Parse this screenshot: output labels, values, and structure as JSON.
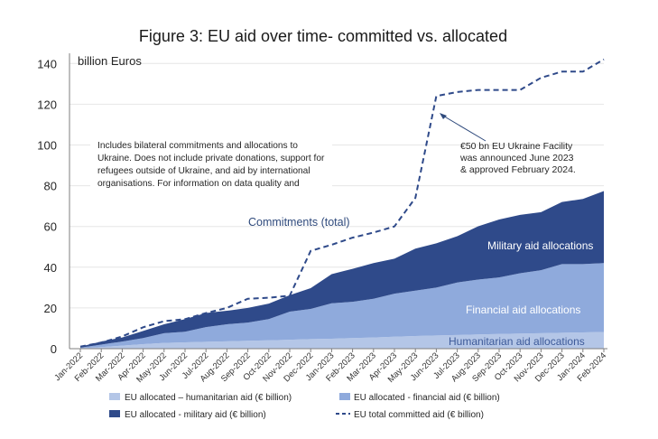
{
  "colors": {
    "humanitarian": "#b4c6e7",
    "financial": "#8faadc",
    "military": "#2f4a8a",
    "committed": "#2f4a8a",
    "grid": "#e6e6e6"
  },
  "chart_data": {
    "type": "area",
    "title": "Figure 3: EU aid over time- committed vs. allocated",
    "ylabel": "billion Euros",
    "ylim": [
      0,
      145
    ],
    "yticks": [
      0,
      20,
      40,
      60,
      80,
      100,
      120,
      140
    ],
    "grid": true,
    "stacked": true,
    "categories": [
      "Jan-2022",
      "Feb-2022",
      "Mar-2022",
      "Apr-2022",
      "May-2022",
      "Jun-2022",
      "Jul-2022",
      "Aug-2022",
      "Sep-2022",
      "Oct-2022",
      "Nov-2022",
      "Dec-2022",
      "Jan-2023",
      "Feb-2023",
      "Mar-2023",
      "Apr-2023",
      "May-2023",
      "Jun-2023",
      "Jul-2023",
      "Aug-2023",
      "Sep-2023",
      "Oct-2023",
      "Nov-2023",
      "Dec-2023",
      "Jan-2024",
      "Feb-2024"
    ],
    "series": [
      {
        "name": "EU allocated – humanitarian aid (€ billion)",
        "key": "humanitarian",
        "values": [
          0.2,
          0.8,
          1.5,
          2.2,
          2.8,
          3.1,
          3.4,
          3.6,
          3.9,
          4.1,
          4.4,
          4.7,
          4.9,
          5.2,
          5.5,
          5.9,
          6.2,
          6.5,
          6.7,
          7.0,
          7.2,
          7.4,
          7.6,
          7.8,
          8.0,
          8.2
        ]
      },
      {
        "name": "EU allocated - financial aid (€ billion)",
        "key": "financial",
        "values": [
          0.3,
          1.2,
          2.0,
          3.0,
          4.8,
          5.2,
          7.2,
          8.4,
          8.9,
          10.4,
          13.8,
          14.8,
          17.4,
          17.8,
          19.0,
          21.1,
          22.3,
          23.5,
          25.8,
          26.9,
          27.8,
          29.6,
          30.9,
          33.7,
          33.5,
          33.8
        ]
      },
      {
        "name": "EU allocated - military aid (€ billion)",
        "key": "military",
        "values": [
          0.5,
          1.5,
          2.0,
          3.5,
          4.4,
          6.2,
          6.9,
          6.6,
          7.2,
          7.6,
          8.1,
          10.2,
          14.3,
          16.2,
          17.5,
          17.2,
          20.6,
          21.7,
          22.7,
          26.2,
          28.4,
          28.7,
          28.5,
          30.5,
          32.0,
          35.4
        ]
      }
    ],
    "committed": {
      "name": "EU total committed aid (€ billion)",
      "values": [
        1.0,
        3.0,
        6.0,
        10.5,
        13.5,
        14.5,
        17.5,
        20.0,
        24.5,
        25.0,
        26.0,
        48.0,
        51.0,
        54.5,
        57.0,
        60.0,
        74.0,
        124.0,
        126.0,
        127.0,
        127.0,
        127.0,
        133.0,
        136.0,
        136.0,
        142.0
      ]
    },
    "annotations": {
      "note_lines": [
        "Includes bilateral commitments and allocations to",
        "Ukraine. Does not include private donations, support for",
        "refugees outside of Ukraine, and aid by international",
        "organisations. For information on data quality and"
      ],
      "facility_lines": [
        "€50 bn EU Ukraine Facility",
        "was announced June 2023",
        "& approved February 2024."
      ],
      "commitments_label": "Commitments (total)",
      "military_label": "Military aid allocations",
      "financial_label": "Financial aid allocations",
      "humanitarian_label": "Humanitarian aid allocations"
    }
  }
}
